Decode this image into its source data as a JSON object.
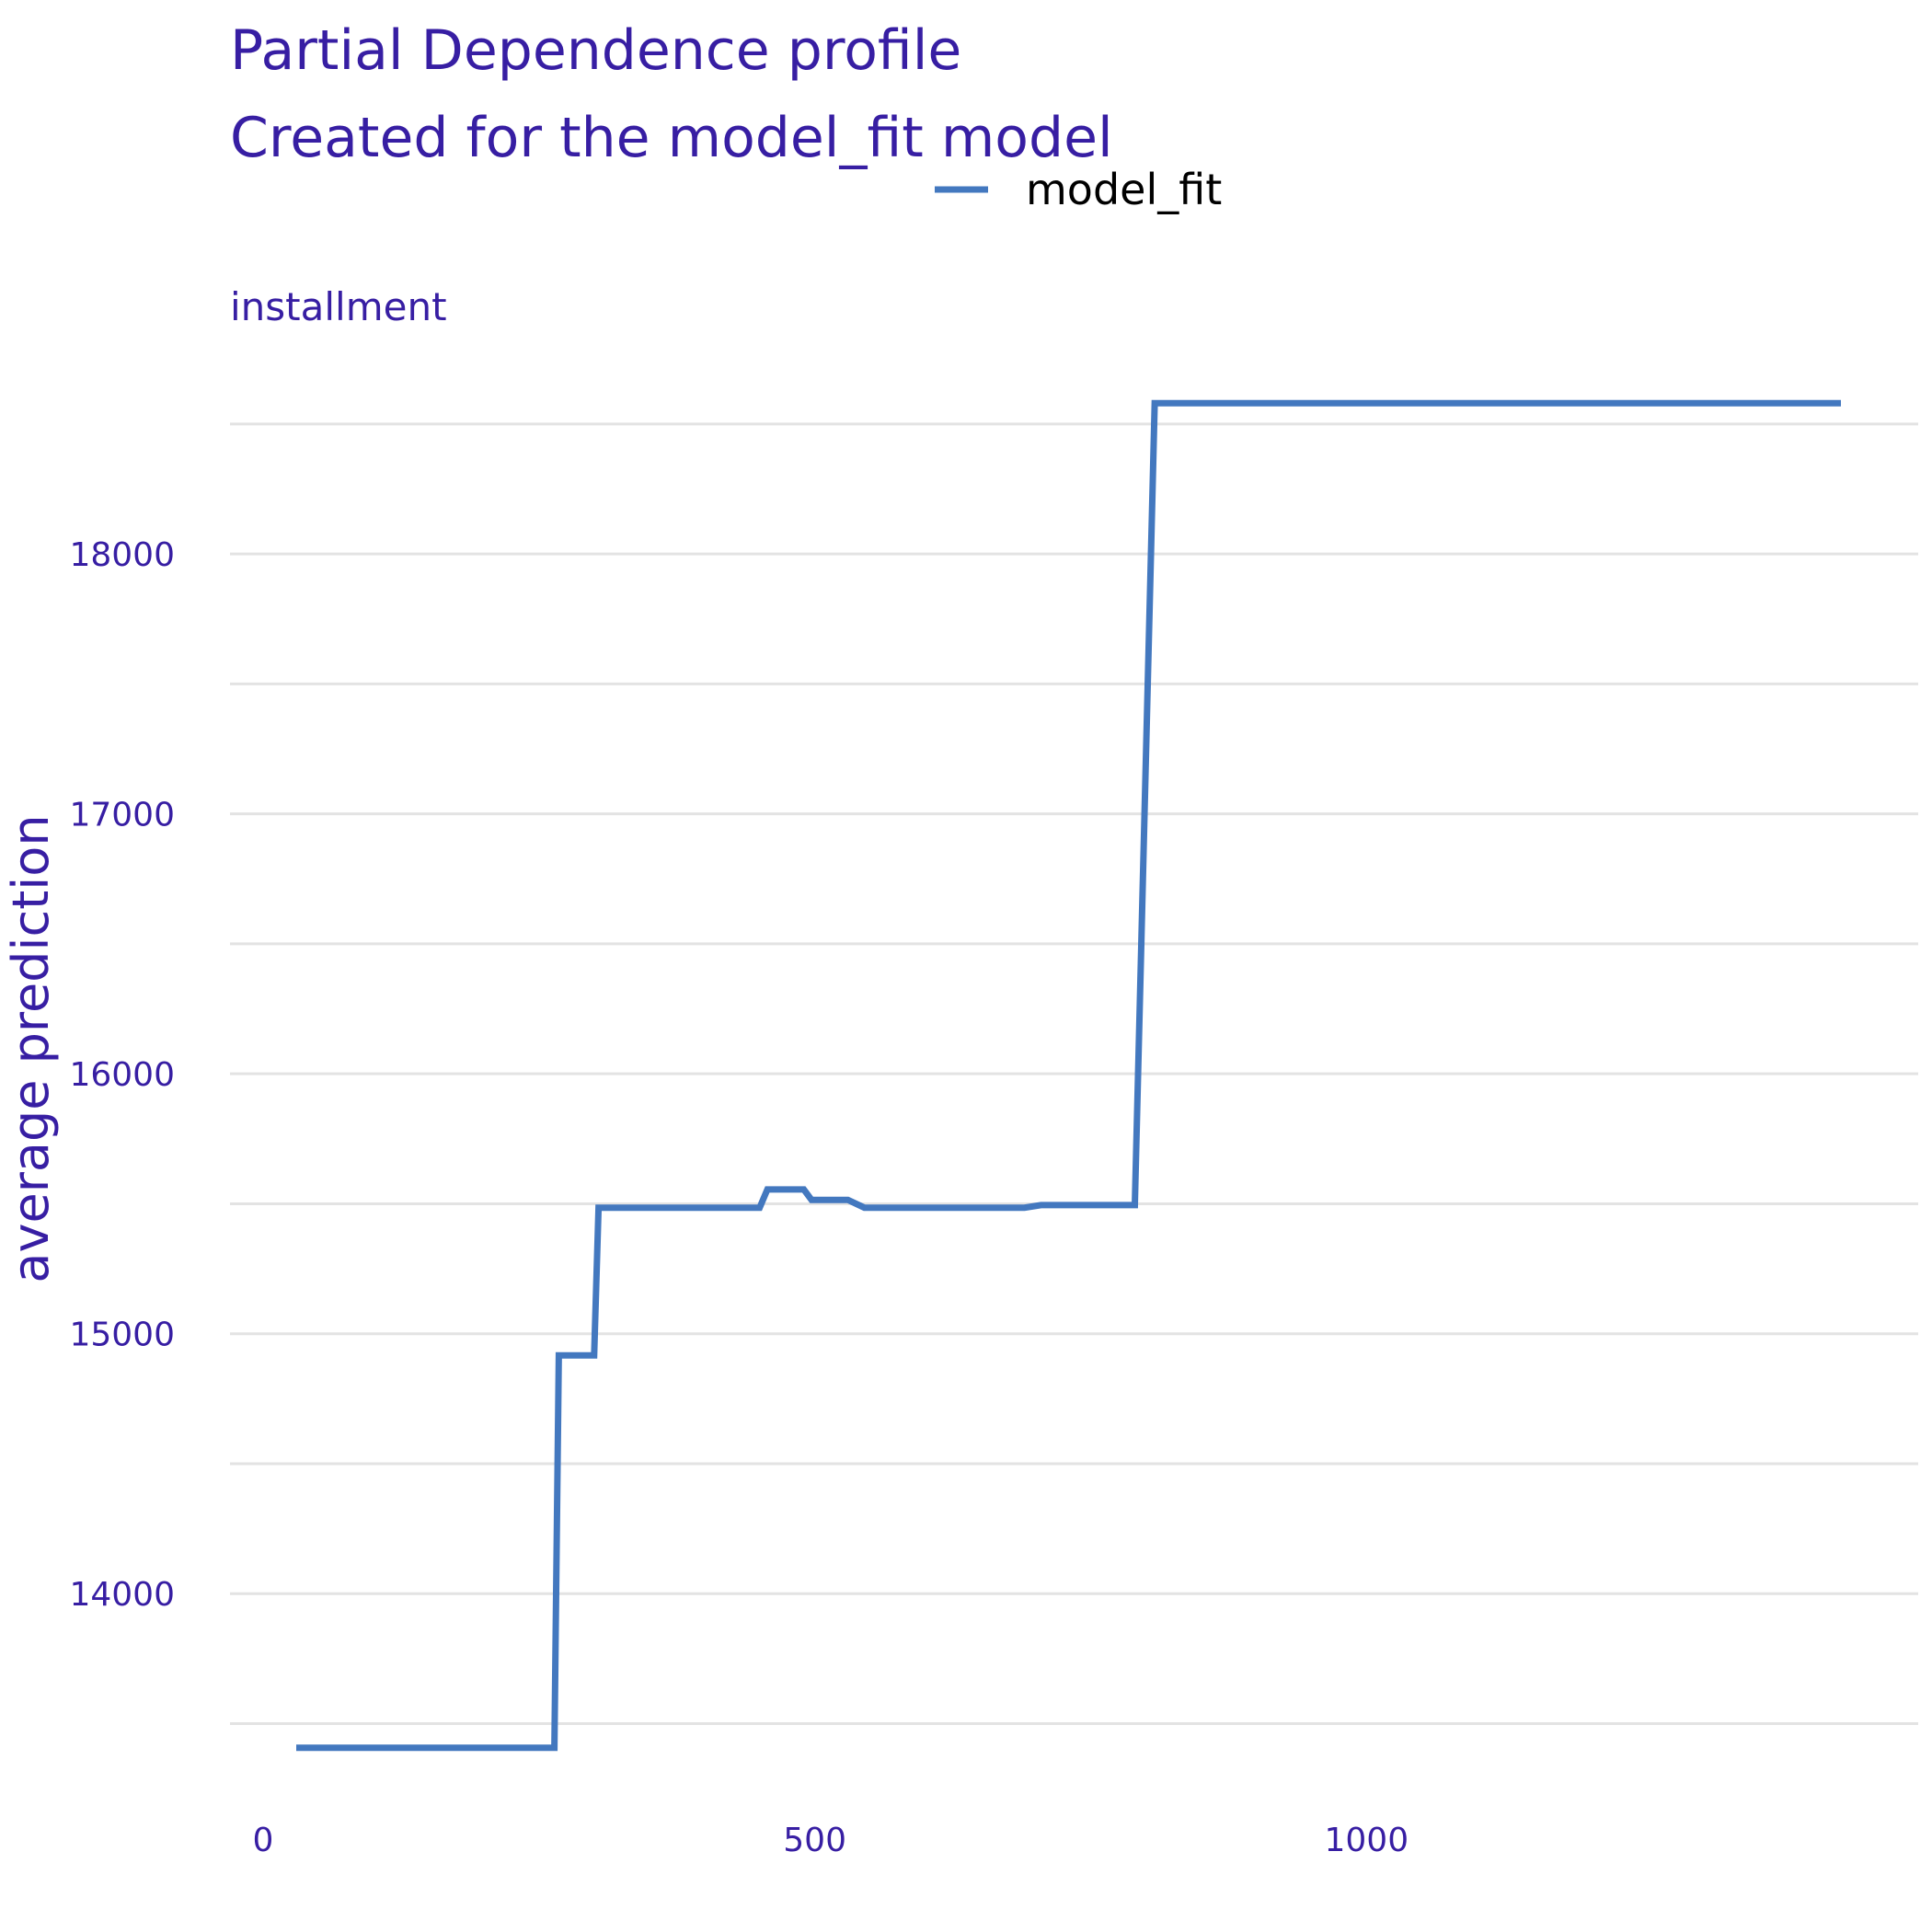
{
  "colors": {
    "title": "#371ea3",
    "axis_text": "#371ea3",
    "grid": "#e3e3e3",
    "series": "#4378bf",
    "legend_text": "#000000",
    "background": "#ffffff"
  },
  "chart_data": {
    "type": "line",
    "title": "Partial Dependence profile",
    "subtitle": "Created for the model_fit model",
    "facet_label": "installment",
    "xlabel": "",
    "ylabel": "average prediction",
    "xlim": [
      -30,
      1500
    ],
    "ylim": [
      13300,
      18680
    ],
    "x_ticks": [
      0,
      500,
      1000
    ],
    "y_ticks": [
      14000,
      15000,
      16000,
      17000,
      18000
    ],
    "y_minor_grid": [
      13500,
      14500,
      15500,
      16500,
      17500,
      18500
    ],
    "grid": "horizontal",
    "legend": {
      "position": "top",
      "entries": [
        "model_fit"
      ]
    },
    "series": [
      {
        "name": "model_fit",
        "x": [
          30,
          100,
          200,
          264,
          268,
          300,
          304,
          340,
          400,
          450,
          457,
          490,
          497,
          530,
          545,
          600,
          650,
          690,
          705,
          790,
          808,
          900,
          1000,
          1100,
          1200,
          1300,
          1430
        ],
        "y": [
          13407,
          13407,
          13407,
          13407,
          14917,
          14917,
          15485,
          15485,
          15485,
          15485,
          15555,
          15555,
          15515,
          15515,
          15485,
          15485,
          15485,
          15485,
          15495,
          15495,
          18580,
          18580,
          18580,
          18580,
          18580,
          18580,
          18580
        ]
      }
    ]
  }
}
